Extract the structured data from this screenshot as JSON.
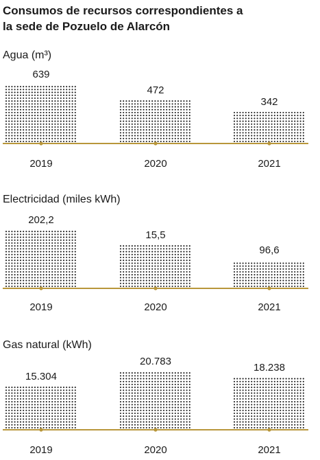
{
  "title_lines": [
    "Consumos de recursos correspondientes a",
    "la sede de Pozuelo de Alarcón"
  ],
  "colors": {
    "baseline": "#b8963a",
    "dots": "#1a1a1a",
    "text": "#1a1a1a"
  },
  "chart_data": [
    {
      "type": "bar",
      "title": "Agua (m³)",
      "categories": [
        "2019",
        "2020",
        "2021"
      ],
      "values": [
        639,
        472,
        342
      ],
      "value_labels": [
        "639",
        "472",
        "342"
      ],
      "style": "dotted-fill bars on a gold baseline"
    },
    {
      "type": "bar",
      "title": "Electricidad (miles kWh)",
      "categories": [
        "2019",
        "2020",
        "2021"
      ],
      "values": [
        202.2,
        15.5,
        96.6
      ],
      "value_labels": [
        "202,2",
        "15,5",
        "96,6"
      ],
      "style": "dotted-fill bars on a gold baseline"
    },
    {
      "type": "bar",
      "title": "Gas natural (kWh)",
      "categories": [
        "2019",
        "2020",
        "2021"
      ],
      "values": [
        15304,
        20783,
        18238
      ],
      "value_labels": [
        "15.304",
        "20.783",
        "18.238"
      ],
      "style": "dotted-fill bars on a gold baseline"
    }
  ]
}
